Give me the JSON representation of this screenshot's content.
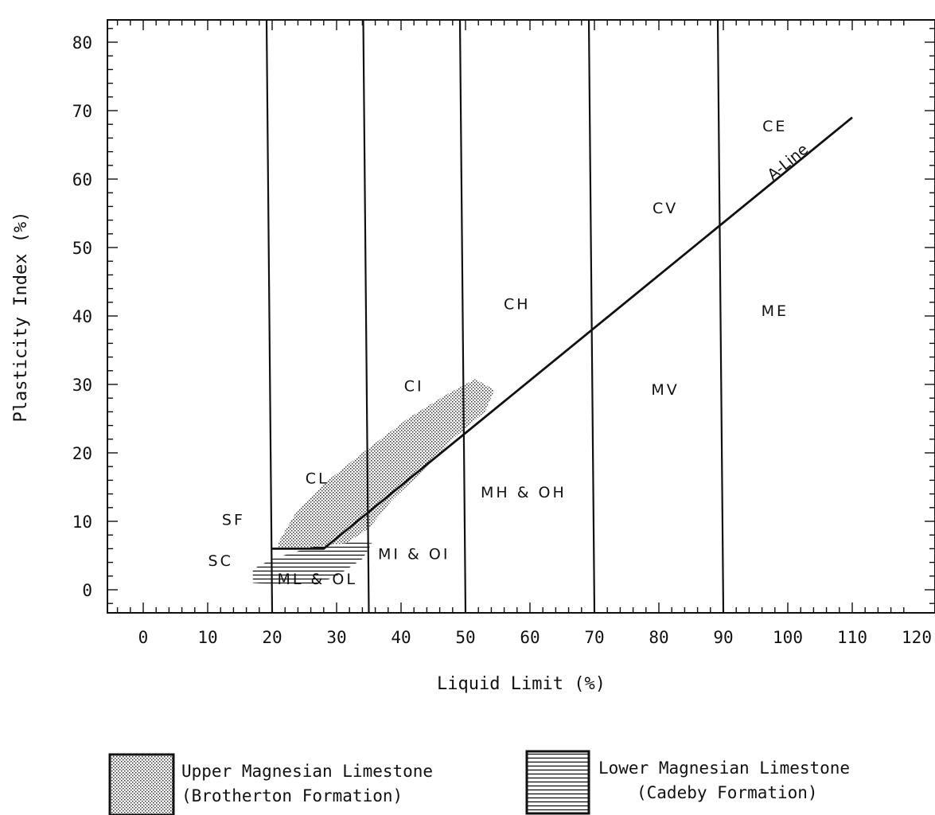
{
  "chart_data": {
    "type": "scatter",
    "title": "",
    "xlabel": "Liquid Limit (%)",
    "ylabel": "Plasticity Index (%)",
    "xlim": [
      -5,
      120
    ],
    "ylim": [
      -3,
      84
    ],
    "x_ticks": [
      "0",
      "10",
      "20",
      "30",
      "40",
      "50",
      "60",
      "70",
      "80",
      "90",
      "100",
      "110",
      "120"
    ],
    "y_ticks": [
      "0",
      "10",
      "20",
      "30",
      "40",
      "50",
      "60",
      "70",
      "80"
    ],
    "boundary_lines_ll": [
      20,
      35,
      50,
      70,
      90
    ],
    "a_line": {
      "label": "A-Line",
      "points": [
        [
          20,
          6
        ],
        [
          28,
          6
        ],
        [
          110,
          69
        ]
      ]
    },
    "zones": [
      {
        "label": "SF",
        "x": 14,
        "y": 9.5
      },
      {
        "label": "SC",
        "x": 12,
        "y": 3.5
      },
      {
        "label": "CL",
        "x": 27,
        "y": 15.5
      },
      {
        "label": "CI",
        "x": 42,
        "y": 29
      },
      {
        "label": "CH",
        "x": 58,
        "y": 41
      },
      {
        "label": "CV",
        "x": 81,
        "y": 55
      },
      {
        "label": "CE",
        "x": 98,
        "y": 67
      },
      {
        "label": "ML & OL",
        "x": 27,
        "y": 0.8
      },
      {
        "label": "MI & OI",
        "x": 42,
        "y": 4.5
      },
      {
        "label": "MH & OH",
        "x": 59,
        "y": 13.5
      },
      {
        "label": "MV",
        "x": 81,
        "y": 28.5
      },
      {
        "label": "ME",
        "x": 98,
        "y": 40
      }
    ],
    "series": [
      {
        "name": "Upper Magnesian Limestone (Brotherton Formation)",
        "name_lines": [
          "Upper Magnesian Limestone",
          "(Brotherton Formation)"
        ],
        "pattern": "stipple",
        "polygon": [
          [
            21,
            7
          ],
          [
            23.5,
            11
          ],
          [
            28,
            15.5
          ],
          [
            34,
            20
          ],
          [
            41,
            25
          ],
          [
            47,
            28.5
          ],
          [
            51.5,
            30.8
          ],
          [
            54.5,
            29.2
          ],
          [
            53,
            26
          ],
          [
            48,
            22
          ],
          [
            43,
            17
          ],
          [
            38.5,
            13
          ],
          [
            35,
            9
          ],
          [
            31,
            6.5
          ],
          [
            25,
            6
          ],
          [
            21,
            6
          ]
        ]
      },
      {
        "name": "Lower Magnesian Limestone (Cadeby Formation)",
        "name_lines": [
          "Lower Magnesian Limestone",
          "(Cadeby Formation)"
        ],
        "pattern": "hatch",
        "polygon": [
          [
            17,
            1
          ],
          [
            17,
            3
          ],
          [
            20,
            4.5
          ],
          [
            26,
            6.2
          ],
          [
            33,
            7
          ],
          [
            35.5,
            6.8
          ],
          [
            34,
            4.5
          ],
          [
            30,
            2
          ],
          [
            26,
            0.5
          ],
          [
            20,
            0.8
          ]
        ]
      }
    ]
  }
}
